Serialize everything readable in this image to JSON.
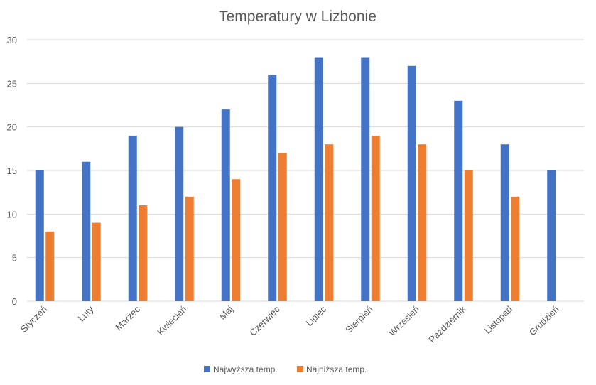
{
  "chart_data": {
    "type": "bar",
    "title": "Temperatury w Lizbonie",
    "xlabel": "",
    "ylabel": "",
    "ylim": [
      0,
      30
    ],
    "yticks": [
      0,
      5,
      10,
      15,
      20,
      25,
      30
    ],
    "grid": true,
    "legend_position": "bottom",
    "categories": [
      "Styczeń",
      "Luty",
      "Marzec",
      "Kwiecień",
      "Maj",
      "Czerwiec",
      "Lipiec",
      "Sierpień",
      "Wrzesień",
      "Październik",
      "Listopad",
      "Grudzień"
    ],
    "series": [
      {
        "name": "Najwyższa temp.",
        "color": "#4472C4",
        "values": [
          15,
          16,
          19,
          20,
          22,
          26,
          28,
          28,
          27,
          23,
          18,
          15
        ]
      },
      {
        "name": "Najniższa temp.",
        "color": "#ED7D31",
        "values": [
          8,
          9,
          11,
          12,
          14,
          17,
          18,
          19,
          18,
          15,
          12,
          null
        ]
      }
    ]
  }
}
